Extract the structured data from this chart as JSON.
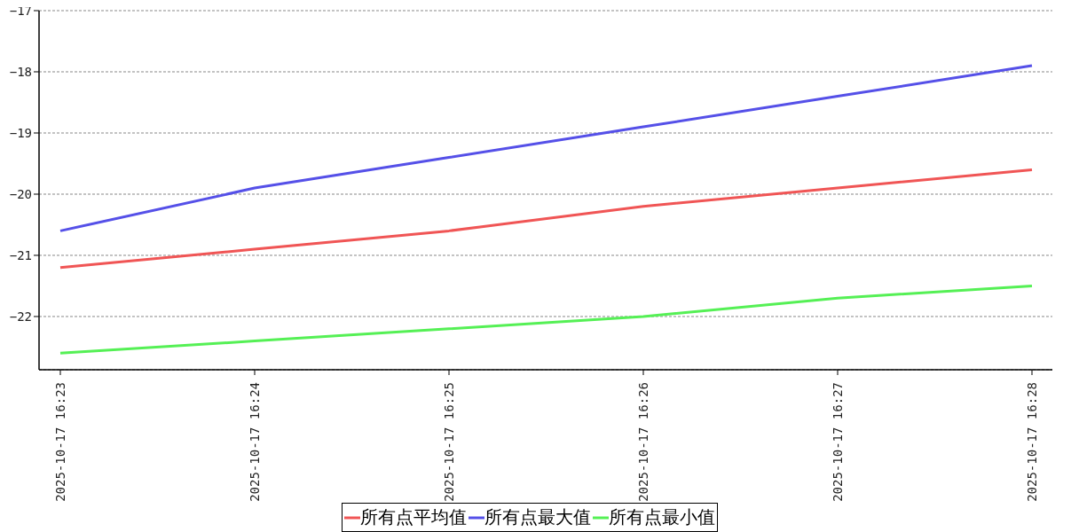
{
  "chart_data": {
    "type": "line",
    "categories": [
      "2025-10-17 16:23",
      "2025-10-17 16:24",
      "2025-10-17 16:25",
      "2025-10-17 16:26",
      "2025-10-17 16:27",
      "2025-10-17 16:28"
    ],
    "series": [
      {
        "name": "所有点平均值",
        "color": "#f05555",
        "values": [
          -21.2,
          -20.9,
          -20.6,
          -20.2,
          -19.9,
          -19.6
        ]
      },
      {
        "name": "所有点最大值",
        "color": "#5550e8",
        "values": [
          -20.6,
          -19.9,
          -19.4,
          -18.9,
          -18.4,
          -17.9
        ]
      },
      {
        "name": "所有点最小值",
        "color": "#55f055",
        "values": [
          -22.6,
          -22.4,
          -22.2,
          -22.0,
          -21.7,
          -21.5
        ]
      }
    ],
    "ylim": [
      -22.87,
      -17
    ],
    "yticks": [
      -22,
      -21,
      -20,
      -19,
      -18,
      -17
    ],
    "grid": "y",
    "legend": "bottom",
    "marker": "none",
    "line_style": "solid"
  }
}
